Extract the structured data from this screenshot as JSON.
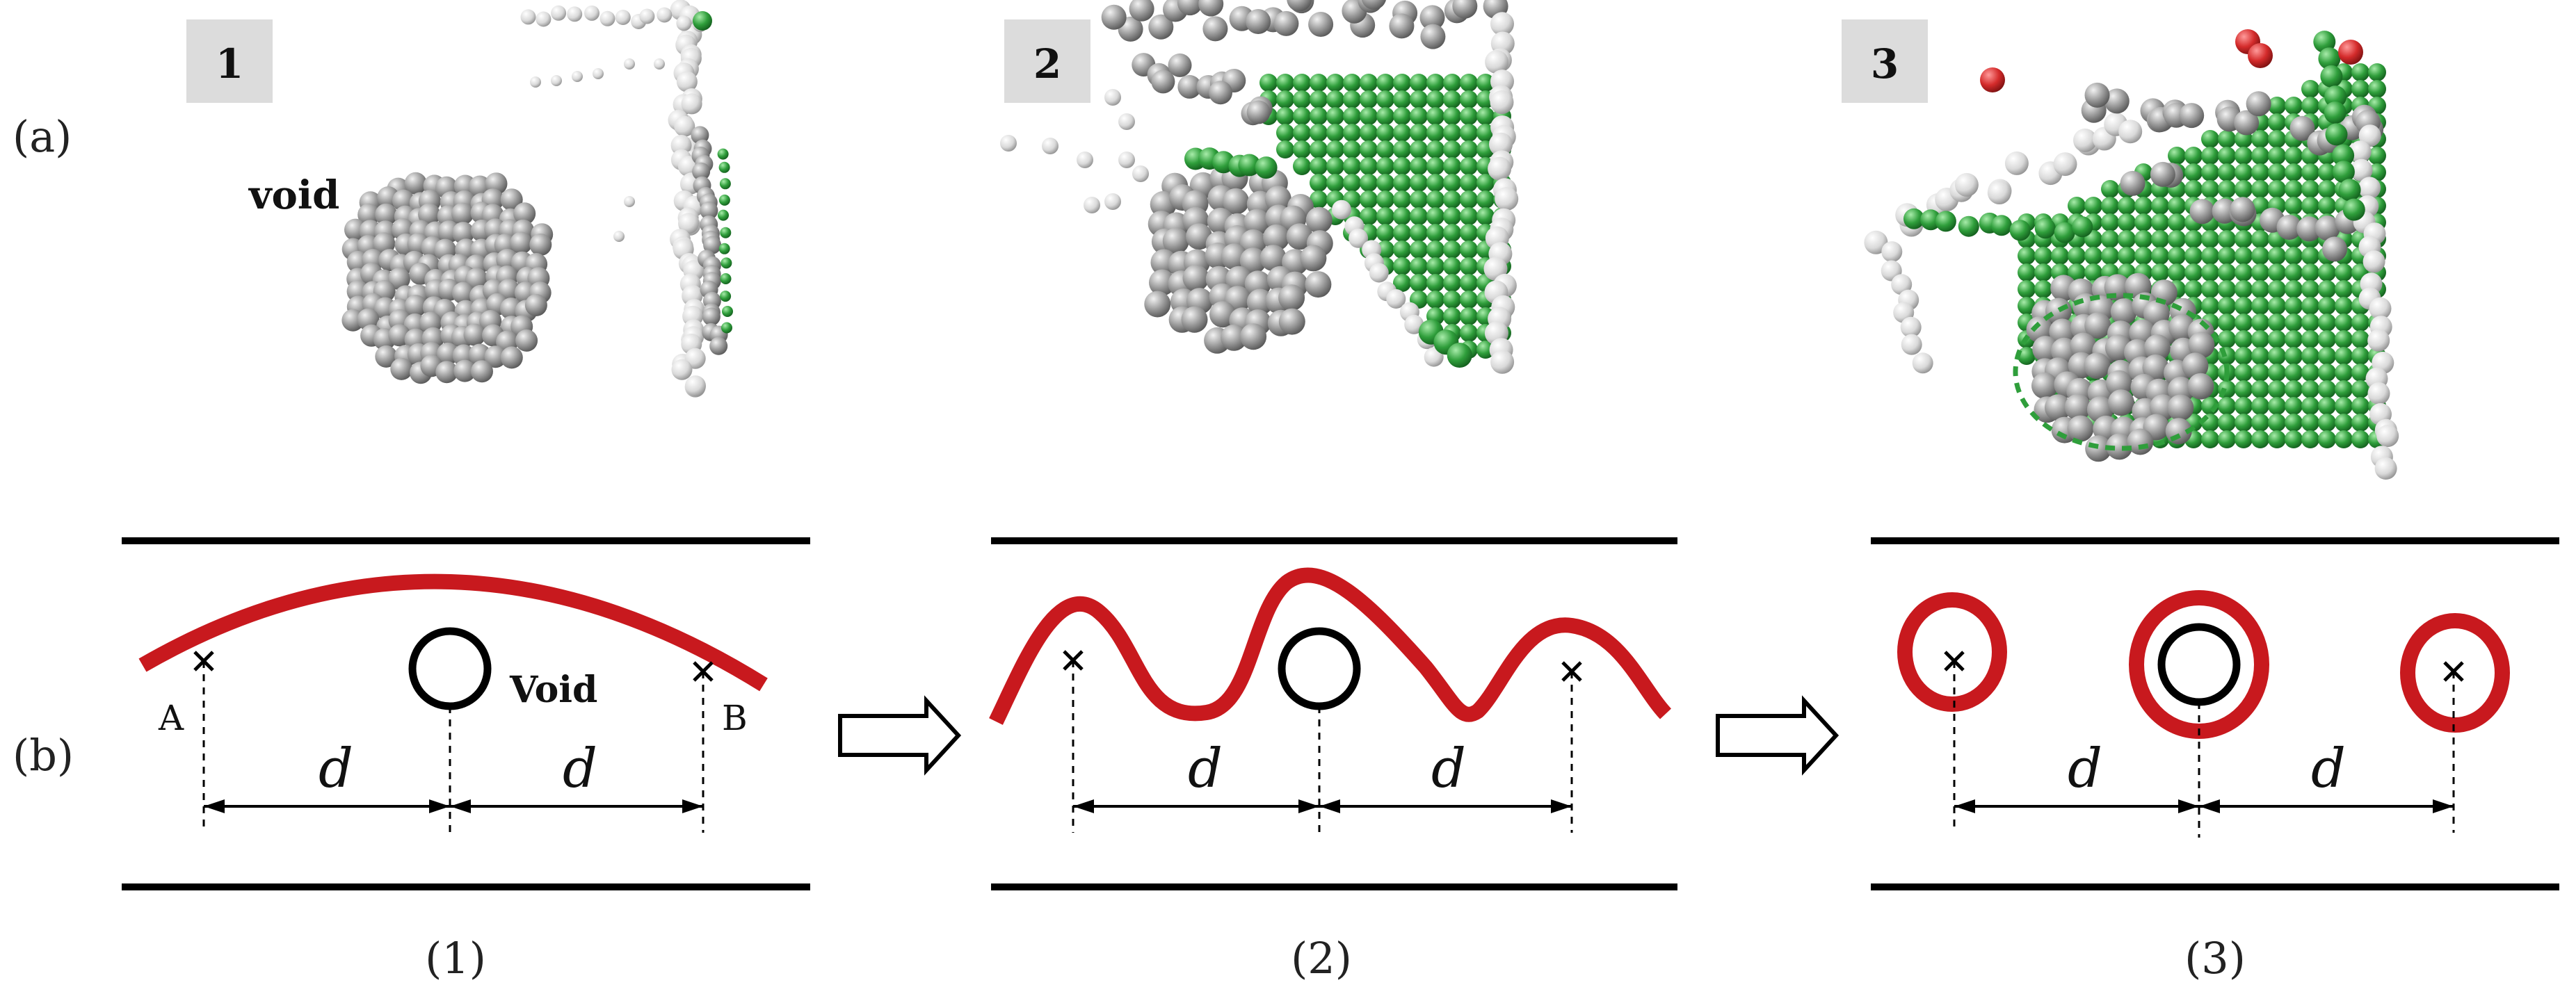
{
  "row_labels": {
    "a": "(a)",
    "b": "(b)"
  },
  "panels": [
    {
      "badge": "1",
      "void_label": "void",
      "point_a": "A",
      "point_b": "B",
      "caption": "(1)"
    },
    {
      "badge": "2",
      "caption": "(2)"
    },
    {
      "badge": "3",
      "caption": "(3)"
    }
  ],
  "schematic_void_label": "Void",
  "distance_symbol": "d",
  "colors": {
    "dislocation_line": "#c8191e",
    "defect_green": "#2f9e3b",
    "atom_gray": "#8a8a8a",
    "stacking_fault_red": "#d42b2b"
  }
}
